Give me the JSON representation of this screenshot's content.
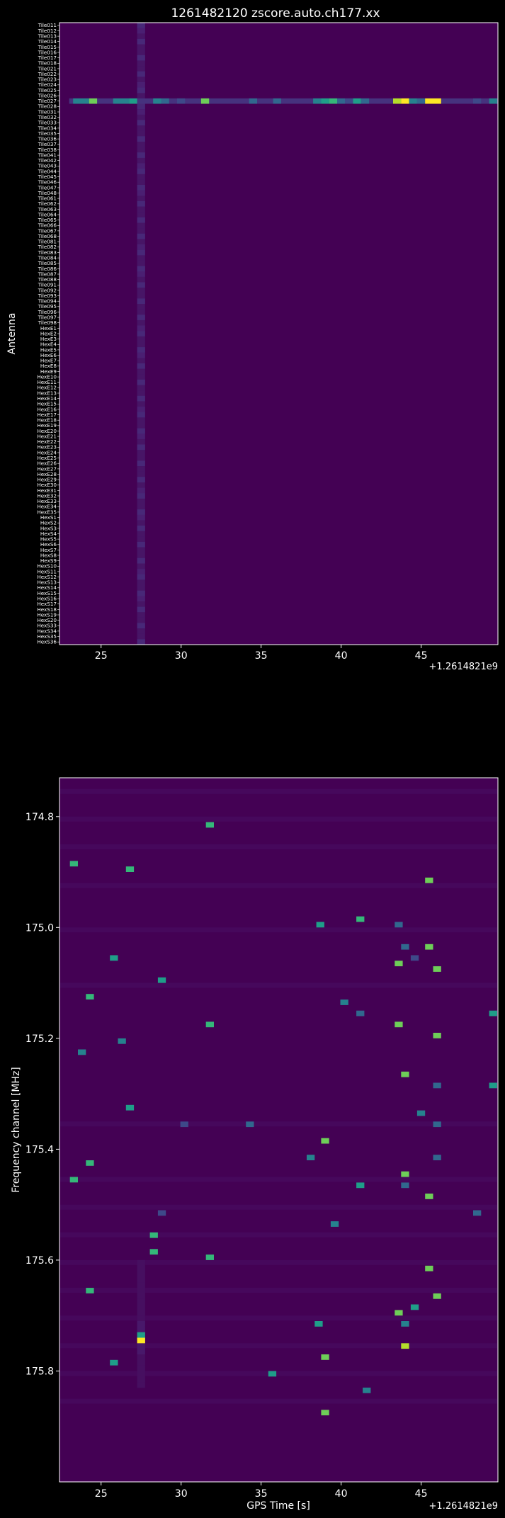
{
  "colors": {
    "background": "#000000",
    "text": "#ffffff",
    "viridis": [
      "#440154",
      "#482878",
      "#3e4989",
      "#31688e",
      "#26828e",
      "#1f9e89",
      "#35b779",
      "#6ece58",
      "#b5de2b",
      "#fde725"
    ]
  },
  "chart_data": [
    {
      "type": "heatmap",
      "title": "1261482120 zscore.auto.ch177.xx",
      "xlabel": "",
      "ylabel": "Antenna",
      "x_offset_label": "+1.2614821e9",
      "xlim": [
        22.4,
        49.8
      ],
      "xticks": [
        "25",
        "30",
        "35",
        "40",
        "45"
      ],
      "xtick_values": [
        25,
        30,
        35,
        40,
        45
      ],
      "antennas": [
        "Tile011",
        "Tile012",
        "Tile013",
        "Tile014",
        "Tile015",
        "Tile016",
        "Tile017",
        "Tile018",
        "Tile021",
        "Tile022",
        "Tile023",
        "Tile024",
        "Tile025",
        "Tile026",
        "Tile027",
        "Tile028",
        "Tile031",
        "Tile032",
        "Tile033",
        "Tile034",
        "Tile035",
        "Tile036",
        "Tile037",
        "Tile038",
        "Tile041",
        "Tile042",
        "Tile043",
        "Tile044",
        "Tile045",
        "Tile046",
        "Tile047",
        "Tile048",
        "Tile061",
        "Tile062",
        "Tile063",
        "Tile064",
        "Tile065",
        "Tile066",
        "Tile067",
        "Tile068",
        "Tile081",
        "Tile082",
        "Tile083",
        "Tile084",
        "Tile085",
        "Tile086",
        "Tile087",
        "Tile088",
        "Tile091",
        "Tile092",
        "Tile093",
        "Tile094",
        "Tile095",
        "Tile096",
        "Tile097",
        "Tile098",
        "HexE1",
        "HexE2",
        "HexE3",
        "HexE4",
        "HexE5",
        "HexE6",
        "HexE7",
        "HexE8",
        "HexE9",
        "HexE10",
        "HexE11",
        "HexE12",
        "HexE13",
        "HexE14",
        "HexE15",
        "HexE16",
        "HexE17",
        "HexE18",
        "HexE19",
        "HexE20",
        "HexE21",
        "HexE22",
        "HexE23",
        "HexE24",
        "HexE25",
        "HexE26",
        "HexE27",
        "HexE28",
        "HexE29",
        "HexE30",
        "HexE31",
        "HexE32",
        "HexE33",
        "HexE34",
        "HexE35",
        "HexS1",
        "HexS2",
        "HexS3",
        "HexS4",
        "HexS5",
        "HexS6",
        "HexS7",
        "HexS8",
        "HexS9",
        "HexS10",
        "HexS11",
        "HexS12",
        "HexS13",
        "HexS14",
        "HexS15",
        "HexS16",
        "HexS17",
        "HexS18",
        "HexS19",
        "HexS20",
        "HexS33",
        "HexS34",
        "HexS35",
        "HexS36"
      ],
      "hot_antenna": "Tile027",
      "hot_column_x": 27.5,
      "hot_row_cells": [
        [
          23.5,
          0.4
        ],
        [
          24.0,
          0.45
        ],
        [
          24.5,
          0.8
        ],
        [
          26.0,
          0.4
        ],
        [
          26.5,
          0.45
        ],
        [
          27.0,
          0.5
        ],
        [
          28.5,
          0.45
        ],
        [
          29.0,
          0.35
        ],
        [
          30.0,
          0.2
        ],
        [
          31.5,
          0.8
        ],
        [
          34.5,
          0.3
        ],
        [
          36.0,
          0.35
        ],
        [
          38.5,
          0.4
        ],
        [
          39.0,
          0.5
        ],
        [
          39.5,
          0.7
        ],
        [
          40.0,
          0.3
        ],
        [
          40.5,
          0.2
        ],
        [
          41.0,
          0.55
        ],
        [
          41.5,
          0.35
        ],
        [
          43.5,
          0.85
        ],
        [
          44.0,
          0.95
        ],
        [
          44.5,
          0.45
        ],
        [
          45.0,
          0.35
        ],
        [
          45.5,
          0.95
        ],
        [
          46.0,
          1.0
        ],
        [
          48.5,
          0.25
        ],
        [
          49.5,
          0.45
        ]
      ]
    },
    {
      "type": "heatmap",
      "title": "",
      "xlabel": "GPS Time [s]",
      "ylabel": "Frequency channel [MHz]",
      "x_offset_label": "+1.2614821e9",
      "xlim": [
        22.4,
        49.8
      ],
      "ylim": [
        174.73,
        176.0
      ],
      "xticks": [
        "25",
        "30",
        "35",
        "40",
        "45"
      ],
      "xtick_values": [
        25,
        30,
        35,
        40,
        45
      ],
      "yticks": [
        "174.8",
        "175.0",
        "175.2",
        "175.4",
        "175.6",
        "175.8"
      ],
      "ytick_values": [
        174.8,
        175.0,
        175.2,
        175.4,
        175.6,
        175.8
      ],
      "hot_column_x": 27.5,
      "cells": [
        [
          31.8,
          174.81,
          0.7
        ],
        [
          23.3,
          174.88,
          0.65
        ],
        [
          26.8,
          174.89,
          0.7
        ],
        [
          45.5,
          174.91,
          0.8
        ],
        [
          38.7,
          174.99,
          0.6
        ],
        [
          41.2,
          174.98,
          0.65
        ],
        [
          43.6,
          174.99,
          0.35
        ],
        [
          44.0,
          175.03,
          0.35
        ],
        [
          45.5,
          175.03,
          0.8
        ],
        [
          25.8,
          175.05,
          0.5
        ],
        [
          44.6,
          175.05,
          0.25
        ],
        [
          43.6,
          175.06,
          0.8
        ],
        [
          46.0,
          175.07,
          0.8
        ],
        [
          28.8,
          175.09,
          0.5
        ],
        [
          24.3,
          175.12,
          0.7
        ],
        [
          40.2,
          175.13,
          0.4
        ],
        [
          41.2,
          175.15,
          0.35
        ],
        [
          49.5,
          175.15,
          0.55
        ],
        [
          31.8,
          175.17,
          0.7
        ],
        [
          43.6,
          175.17,
          0.8
        ],
        [
          26.3,
          175.2,
          0.45
        ],
        [
          46.0,
          175.19,
          0.75
        ],
        [
          23.8,
          175.22,
          0.45
        ],
        [
          44.0,
          175.26,
          0.8
        ],
        [
          46.0,
          175.28,
          0.35
        ],
        [
          49.5,
          175.28,
          0.6
        ],
        [
          26.8,
          175.32,
          0.6
        ],
        [
          45.0,
          175.33,
          0.4
        ],
        [
          30.2,
          175.35,
          0.25
        ],
        [
          34.3,
          175.35,
          0.35
        ],
        [
          46.0,
          175.35,
          0.3
        ],
        [
          39.0,
          175.38,
          0.75
        ],
        [
          38.1,
          175.41,
          0.45
        ],
        [
          46.0,
          175.41,
          0.35
        ],
        [
          24.3,
          175.42,
          0.7
        ],
        [
          44.0,
          175.44,
          0.8
        ],
        [
          23.3,
          175.45,
          0.65
        ],
        [
          41.2,
          175.46,
          0.6
        ],
        [
          44.0,
          175.46,
          0.35
        ],
        [
          45.5,
          175.48,
          0.8
        ],
        [
          28.8,
          175.51,
          0.25
        ],
        [
          48.5,
          175.51,
          0.3
        ],
        [
          39.6,
          175.53,
          0.45
        ],
        [
          28.3,
          175.55,
          0.65
        ],
        [
          28.3,
          175.58,
          0.65
        ],
        [
          31.8,
          175.59,
          0.7
        ],
        [
          45.5,
          175.61,
          0.8
        ],
        [
          24.3,
          175.65,
          0.7
        ],
        [
          46.0,
          175.66,
          0.8
        ],
        [
          44.6,
          175.68,
          0.55
        ],
        [
          43.6,
          175.69,
          0.8
        ],
        [
          38.6,
          175.71,
          0.6
        ],
        [
          44.0,
          175.71,
          0.45
        ],
        [
          27.5,
          175.73,
          0.55
        ],
        [
          27.5,
          175.74,
          0.95
        ],
        [
          44.0,
          175.75,
          0.85
        ],
        [
          39.0,
          175.77,
          0.8
        ],
        [
          25.8,
          175.78,
          0.55
        ],
        [
          35.7,
          175.8,
          0.5
        ],
        [
          41.6,
          175.83,
          0.45
        ],
        [
          39.0,
          175.87,
          0.8
        ]
      ]
    }
  ]
}
